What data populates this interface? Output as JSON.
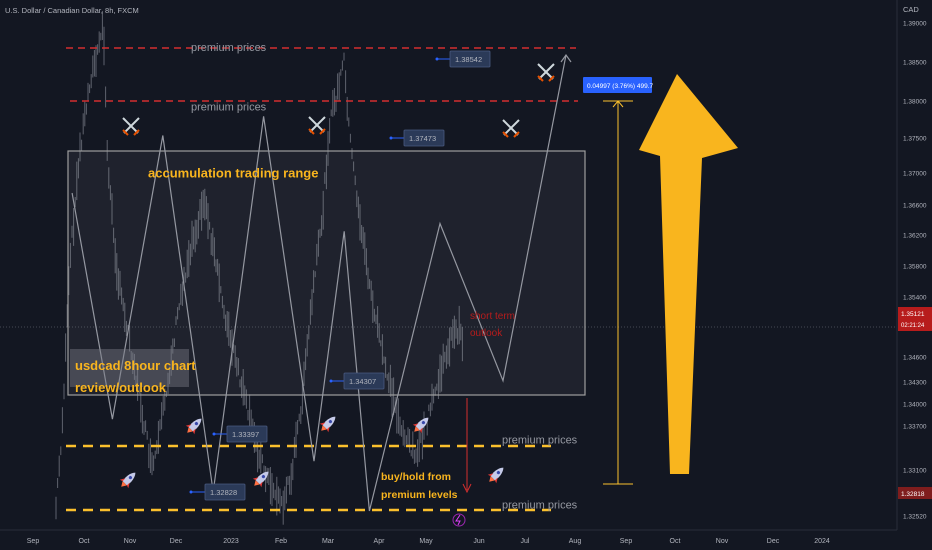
{
  "header": {
    "symbol": "U.S. Dollar / Canadian Dollar, 8h, FXCM"
  },
  "colors": {
    "bg": "#131722",
    "axis_text": "#b2b5be",
    "candle": "#787b86",
    "zigzag": "#9598a1",
    "red_line": "#d32f2f",
    "yellow": "#fbc02d",
    "box_border": "#9e9e9e",
    "label_bg": "#2b3a58",
    "blue": "#2962ff",
    "current_price_bg": "#b71c1c"
  },
  "chart_data": {
    "type": "line",
    "currency_label": "CAD",
    "x_ticks": [
      "Sep",
      "Oct",
      "Nov",
      "Dec",
      "2023",
      "Feb",
      "Mar",
      "Apr",
      "May",
      "Jun",
      "Jul",
      "Aug",
      "Sep",
      "Oct",
      "Nov",
      "Dec",
      "2024"
    ],
    "y_ticks": [
      "1.39000",
      "1.38500",
      "1.38000",
      "1.37500",
      "1.37000",
      "1.36600",
      "1.36200",
      "1.35800",
      "1.35400",
      "1.35014",
      "1.34600",
      "1.34300",
      "1.34000",
      "1.33700",
      "1.33100",
      "1.32818",
      "1.32520",
      "1.32500"
    ],
    "price_tags": [
      {
        "label": "1.35121",
        "time": "02:21:24",
        "type": "current"
      },
      {
        "label": "1.32818",
        "type": "low"
      }
    ],
    "zigzag_projection": [
      [
        4,
        1.368
      ],
      [
        20,
        1.3385
      ],
      [
        40,
        1.3755
      ],
      [
        60,
        1.329
      ],
      [
        80,
        1.378
      ],
      [
        100,
        1.333
      ],
      [
        112,
        1.363
      ],
      [
        122,
        1.3265
      ],
      [
        150,
        1.364
      ],
      [
        175,
        1.3435
      ],
      [
        200,
        1.386
      ]
    ],
    "annotations": [
      {
        "text": "premium prices",
        "price": 1.387
      },
      {
        "text": "premium prices",
        "price": 1.3795
      },
      {
        "text": "accumulation trading range",
        "price": 1.3706
      },
      {
        "text": "usdcad 8hour chart",
        "price": 1.3455
      },
      {
        "text": "review/outlook",
        "price": 1.3425
      },
      {
        "text": "short term",
        "price": 1.352
      },
      {
        "text": "outlook",
        "price": 1.3498
      },
      {
        "text": "premium prices",
        "price": 1.3358
      },
      {
        "text": "buy/hold from",
        "price": 1.331
      },
      {
        "text": "premium levels",
        "price": 1.3287
      },
      {
        "text": "premium prices",
        "price": 1.3273
      }
    ],
    "price_labels": [
      "1.38542",
      "1.37473",
      "1.34307",
      "1.33397",
      "1.32828"
    ],
    "measure_label": "0.04997 (3.76%) 499.7",
    "levels": [
      {
        "price": 1.387,
        "color": "red",
        "style": "dashed"
      },
      {
        "price": 1.379,
        "color": "red",
        "style": "dashed"
      },
      {
        "price": 1.3351,
        "color": "yellow",
        "style": "dashed"
      },
      {
        "price": 1.327,
        "color": "yellow",
        "style": "dashed"
      }
    ],
    "range_box": {
      "top": 1.3725,
      "bottom": 1.3421
    }
  }
}
